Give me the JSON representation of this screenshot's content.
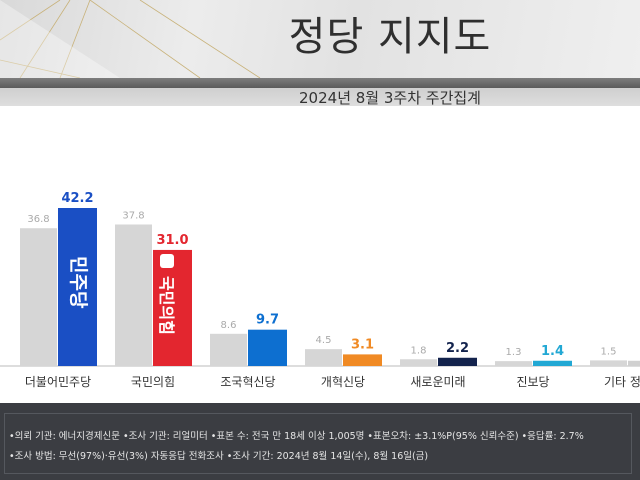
{
  "header": {
    "title": "정당 지지도",
    "subtitle": "2024년 8월 3주차 주간집계"
  },
  "chart_data": {
    "type": "bar",
    "title": "정당 지지도",
    "subtitle": "2024년 8월 3주차 주간집계",
    "categories": [
      "더불어민주당",
      "국민의힘",
      "조국혁신당",
      "개혁신당",
      "새로운미래",
      "진보당",
      "기타 정당"
    ],
    "series": [
      {
        "values": [
          36.8,
          37.8,
          8.6,
          4.5,
          1.8,
          1.3,
          1.5
        ],
        "color": "#d6d6d6"
      },
      {
        "values": [
          42.2,
          31.0,
          9.7,
          3.1,
          2.2,
          1.4,
          null
        ],
        "colors": [
          "#1a4fc4",
          "#e3262f",
          "#0d6fd0",
          "#f08a24",
          "#13234d",
          "#22a8d4",
          "#d6d6d6"
        ]
      }
    ],
    "label_colors": [
      "#1a4fc4",
      "#e3262f",
      "#0d6fd0",
      "#f08a24",
      "#13234d",
      "#22a8d4",
      "#999999"
    ],
    "ylim": [
      0,
      45
    ],
    "grid": false,
    "legend": "none",
    "logos": {
      "더불어민주당": "민주당",
      "국민의힘": "국민의힘"
    }
  },
  "footer": {
    "line1": "•의뢰 기관: 에너지경제신문  •조사 기관: 리얼미터 •표본 수: 전국 만 18세 이상 1,005명 •표본오차: ±3.1%P(95% 신뢰수준) •응답률: 2.7%",
    "line2": "•조사 방법: 무선(97%)·유선(3%) 자동응답 전화조사 •조사 기간: 2024년 8월 14일(수), 8월 16일(금)"
  }
}
